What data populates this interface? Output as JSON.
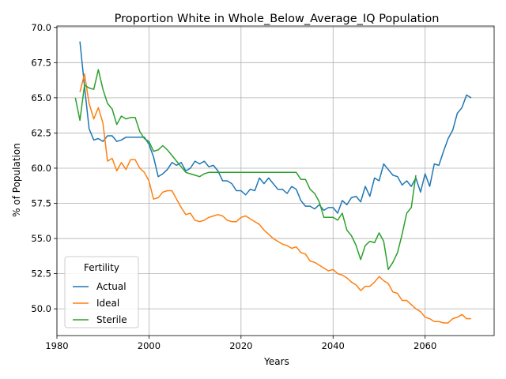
{
  "chart_data": {
    "type": "line",
    "title": "Proportion White in Whole_Below_Average_IQ Population",
    "xlabel": "Years",
    "ylabel": "% of Population",
    "xlim": [
      1980,
      2075
    ],
    "ylim": [
      48.1,
      70.1
    ],
    "xticks": [
      1980,
      2000,
      2020,
      2040,
      2060
    ],
    "xtick_labels": [
      "1980",
      "2000",
      "2020",
      "2040",
      "2060"
    ],
    "yticks": [
      50.0,
      52.5,
      55.0,
      57.5,
      60.0,
      62.5,
      65.0,
      67.5,
      70.0
    ],
    "ytick_labels": [
      "50.0",
      "52.5",
      "55.0",
      "57.5",
      "60.0",
      "62.5",
      "65.0",
      "67.5",
      "70.0"
    ],
    "grid": true,
    "legend": {
      "title": "Fertility",
      "position": "bottom-left"
    },
    "series": [
      {
        "name": "Actual",
        "color": "#1f77b4",
        "x": [
          1985,
          1986,
          1987,
          1988,
          1989,
          1990,
          1991,
          1992,
          1993,
          1994,
          1995,
          1996,
          1997,
          1998,
          1999,
          2000,
          2001,
          2002,
          2003,
          2004,
          2005,
          2006,
          2007,
          2008,
          2009,
          2010,
          2011,
          2012,
          2013,
          2014,
          2015,
          2016,
          2017,
          2018,
          2019,
          2020,
          2021,
          2022,
          2023,
          2024,
          2025,
          2026,
          2027,
          2028,
          2029,
          2030,
          2031,
          2032,
          2033,
          2034,
          2035,
          2036,
          2037,
          2038,
          2039,
          2040,
          2041,
          2042,
          2043,
          2044,
          2045,
          2046,
          2047,
          2048,
          2049,
          2050,
          2051,
          2052,
          2053,
          2054,
          2055,
          2056,
          2057,
          2058,
          2059,
          2060,
          2061,
          2062,
          2063,
          2064,
          2065,
          2066,
          2067,
          2068,
          2069,
          2070
        ],
        "values": [
          69.0,
          65.8,
          62.8,
          62.0,
          62.1,
          61.9,
          62.3,
          62.3,
          61.9,
          62.0,
          62.2,
          62.2,
          62.2,
          62.2,
          62.2,
          61.7,
          60.8,
          59.4,
          59.6,
          59.9,
          60.4,
          60.2,
          60.4,
          59.8,
          60.0,
          60.5,
          60.3,
          60.5,
          60.1,
          60.2,
          59.8,
          59.1,
          59.1,
          58.9,
          58.4,
          58.4,
          58.1,
          58.5,
          58.4,
          59.3,
          58.9,
          59.3,
          58.9,
          58.5,
          58.5,
          58.2,
          58.7,
          58.5,
          57.7,
          57.3,
          57.3,
          57.1,
          57.4,
          57.0,
          57.2,
          57.2,
          56.8,
          57.7,
          57.4,
          57.9,
          58.0,
          57.6,
          58.7,
          58.0,
          59.3,
          59.1,
          60.3,
          59.9,
          59.5,
          59.4,
          58.8,
          59.1,
          58.7,
          59.3,
          58.3,
          59.6,
          58.7,
          60.3,
          60.2,
          61.2,
          62.1,
          62.7,
          63.9,
          64.3,
          65.2,
          65.0
        ]
      },
      {
        "name": "Ideal",
        "color": "#ff7f0e",
        "x": [
          1985,
          1986,
          1987,
          1988,
          1989,
          1990,
          1991,
          1992,
          1993,
          1994,
          1995,
          1996,
          1997,
          1998,
          1999,
          2000,
          2001,
          2002,
          2003,
          2004,
          2005,
          2006,
          2007,
          2008,
          2009,
          2010,
          2011,
          2012,
          2013,
          2014,
          2015,
          2016,
          2017,
          2018,
          2019,
          2020,
          2021,
          2022,
          2023,
          2024,
          2025,
          2026,
          2027,
          2028,
          2029,
          2030,
          2031,
          2032,
          2033,
          2034,
          2035,
          2036,
          2037,
          2038,
          2039,
          2040,
          2041,
          2042,
          2043,
          2044,
          2045,
          2046,
          2047,
          2048,
          2049,
          2050,
          2051,
          2052,
          2053,
          2054,
          2055,
          2056,
          2057,
          2058,
          2059,
          2060,
          2061,
          2062,
          2063,
          2064,
          2065,
          2066,
          2067,
          2068,
          2069,
          2070
        ],
        "values": [
          65.4,
          66.7,
          64.6,
          63.5,
          64.3,
          63.2,
          60.5,
          60.7,
          59.8,
          60.4,
          59.9,
          60.6,
          60.6,
          60.0,
          59.7,
          59.1,
          57.8,
          57.9,
          58.3,
          58.4,
          58.4,
          57.8,
          57.2,
          56.7,
          56.8,
          56.3,
          56.2,
          56.3,
          56.5,
          56.6,
          56.7,
          56.6,
          56.3,
          56.2,
          56.2,
          56.5,
          56.6,
          56.4,
          56.2,
          56.0,
          55.6,
          55.3,
          55.0,
          54.8,
          54.6,
          54.5,
          54.3,
          54.4,
          54.0,
          53.9,
          53.4,
          53.3,
          53.1,
          52.9,
          52.7,
          52.8,
          52.5,
          52.4,
          52.2,
          51.9,
          51.7,
          51.3,
          51.6,
          51.6,
          51.9,
          52.3,
          52.0,
          51.8,
          51.2,
          51.1,
          50.6,
          50.6,
          50.3,
          50.0,
          49.8,
          49.4,
          49.3,
          49.1,
          49.1,
          49.0,
          49.0,
          49.3,
          49.4,
          49.6,
          49.3,
          49.3
        ]
      },
      {
        "name": "Sterile",
        "color": "#2ca02c",
        "x": [
          1984,
          1985,
          1986,
          1987,
          1988,
          1989,
          1990,
          1991,
          1992,
          1993,
          1994,
          1995,
          1996,
          1997,
          1998,
          1999,
          2000,
          2001,
          2002,
          2003,
          2004,
          2005,
          2006,
          2007,
          2008,
          2009,
          2010,
          2011,
          2012,
          2013,
          2014,
          2015,
          2016,
          2017,
          2018,
          2019,
          2020,
          2021,
          2022,
          2023,
          2024,
          2025,
          2026,
          2027,
          2028,
          2029,
          2030,
          2031,
          2032,
          2033,
          2034,
          2035,
          2036,
          2037,
          2038,
          2039,
          2040,
          2041,
          2042,
          2043,
          2044,
          2045,
          2046,
          2047,
          2048,
          2049,
          2050,
          2051,
          2052,
          2053,
          2054,
          2055,
          2056,
          2057,
          2058
        ],
        "values": [
          65.0,
          63.4,
          65.9,
          65.7,
          65.6,
          67.0,
          65.6,
          64.6,
          64.2,
          63.1,
          63.7,
          63.5,
          63.6,
          63.6,
          62.6,
          62.1,
          61.9,
          61.2,
          61.3,
          61.6,
          61.3,
          60.9,
          60.5,
          60.1,
          59.7,
          59.6,
          59.5,
          59.4,
          59.6,
          59.7,
          59.7,
          59.7,
          59.7,
          59.7,
          59.7,
          59.7,
          59.7,
          59.7,
          59.7,
          59.7,
          59.7,
          59.7,
          59.7,
          59.7,
          59.7,
          59.7,
          59.7,
          59.7,
          59.7,
          59.2,
          59.2,
          58.5,
          58.2,
          57.6,
          56.5,
          56.5,
          56.5,
          56.3,
          56.8,
          55.6,
          55.2,
          54.5,
          53.5,
          54.5,
          54.8,
          54.7,
          55.4,
          54.8,
          52.8,
          53.3,
          54.0,
          55.3,
          56.8,
          57.2,
          59.5
        ]
      }
    ]
  }
}
